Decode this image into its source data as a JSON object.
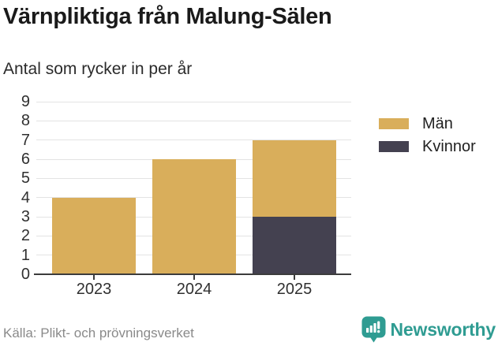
{
  "chart_data": {
    "type": "bar",
    "stacked": true,
    "title": "Värnpliktiga från Malung-Sälen",
    "subtitle": "Antal som rycker in per år",
    "categories": [
      "2023",
      "2024",
      "2025"
    ],
    "series": [
      {
        "name": "Män",
        "color": "#D9AE5B",
        "values": [
          4,
          6,
          4
        ]
      },
      {
        "name": "Kvinnor",
        "color": "#444150",
        "values": [
          0,
          0,
          3
        ]
      }
    ],
    "stack_order_bottom_to_top": [
      "Kvinnor",
      "Män"
    ],
    "totals": [
      4,
      6,
      7
    ],
    "ylim": [
      0,
      9
    ],
    "yticks": [
      0,
      1,
      2,
      3,
      4,
      5,
      6,
      7,
      8,
      9
    ],
    "grid": true,
    "legend_position": "right",
    "source": "Källa: Plikt- och prövningsverket"
  },
  "branding": {
    "name": "Newsworthy",
    "color": "#2F9C92",
    "icon": "newsworthy-bar-chart-speech-bubble-icon"
  },
  "colors": {
    "gridline": "#E3E3E3",
    "axis": "#3C3C3C",
    "title_text": "#1A1A1A",
    "tick_text": "#303030",
    "source_text": "#8A8A8A"
  }
}
